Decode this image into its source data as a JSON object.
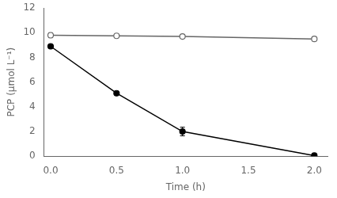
{
  "chart_data": {
    "type": "line",
    "x": [
      0,
      0.5,
      1,
      2
    ],
    "series": [
      {
        "color": "#666666",
        "marker": "open_circle",
        "line_style": "solid",
        "values": [
          9.8,
          9.75,
          9.7,
          9.5
        ],
        "yerr": [
          0.2,
          0.1,
          0.0,
          0.1
        ]
      },
      {
        "color": "#000000",
        "marker": "circle",
        "line_style": "solid",
        "values": [
          8.9,
          5.1,
          2.0,
          0.05
        ],
        "yerr": [
          0.0,
          0.0,
          0.35,
          0.0
        ]
      }
    ],
    "xlim": [
      -0.05,
      2.1
    ],
    "ylim": [
      0,
      12
    ],
    "xticks": [
      {
        "value": 0,
        "label": "0.0"
      },
      {
        "value": 0.5,
        "label": "0.5"
      },
      {
        "value": 1,
        "label": "1.0"
      },
      {
        "value": 1.5,
        "label": "1.5"
      },
      {
        "value": 2,
        "label": "2.0"
      }
    ],
    "yticks": [
      0,
      2,
      4,
      6,
      8,
      10,
      12
    ],
    "xlabel": "Time (h)",
    "ylabel": "PCP (μmol L⁻¹)",
    "grid": false
  }
}
